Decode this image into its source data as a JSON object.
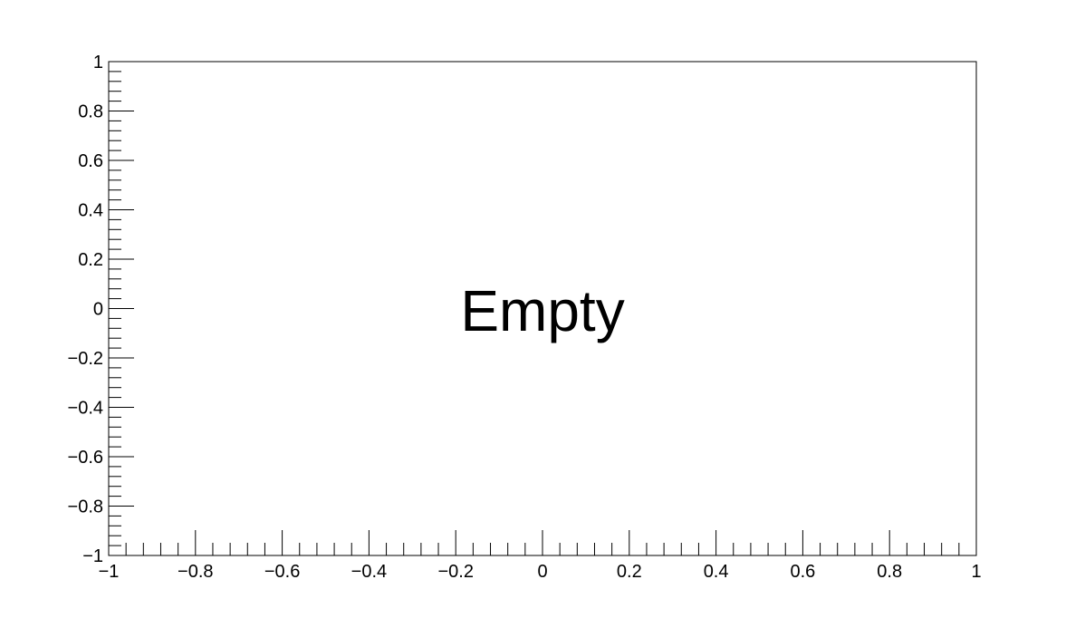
{
  "chart_data": {
    "type": "scatter",
    "title": "",
    "xlabel": "",
    "ylabel": "",
    "xlim": [
      -1,
      1
    ],
    "ylim": [
      -1,
      1
    ],
    "x_ticks": [
      -1,
      -0.8,
      -0.6,
      -0.4,
      -0.2,
      0,
      0.2,
      0.4,
      0.6,
      0.8,
      1
    ],
    "x_tick_labels": [
      "−1",
      "−0.8",
      "−0.6",
      "−0.4",
      "−0.2",
      "0",
      "0.2",
      "0.4",
      "0.6",
      "0.8",
      "1"
    ],
    "y_ticks": [
      -1,
      -0.8,
      -0.6,
      -0.4,
      -0.2,
      0,
      0.2,
      0.4,
      0.6,
      0.8,
      1
    ],
    "y_tick_labels": [
      "−1",
      "−0.8",
      "−0.6",
      "−0.4",
      "−0.2",
      "0",
      "0.2",
      "0.4",
      "0.6",
      "0.8",
      "1"
    ],
    "minor_ticks_per_major": 4,
    "grid": false,
    "series": [],
    "annotation": "Empty"
  }
}
